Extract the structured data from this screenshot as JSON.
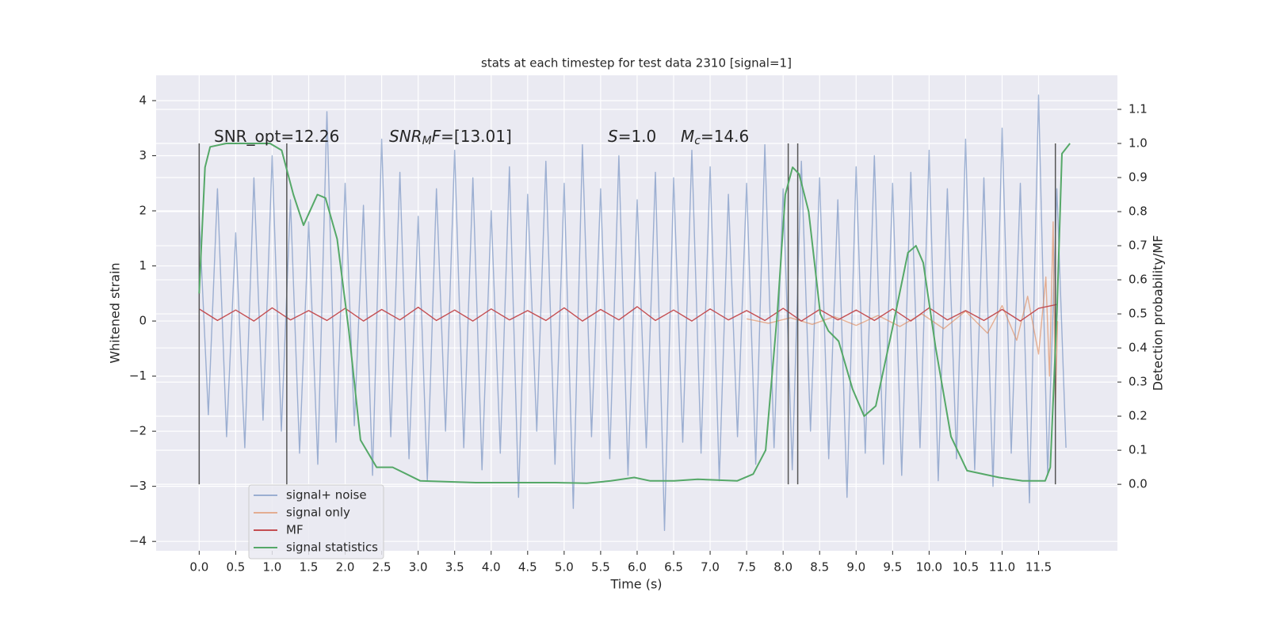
{
  "chart_data": {
    "type": "line",
    "title": "stats at each timestep for test data 2310 [signal=1]",
    "xlabel": "Time (s)",
    "ylabel": "Whitened strain",
    "y2label": "Detection probability/MF",
    "xlim": [
      -0.59,
      12.58
    ],
    "ylim": [
      -4.17,
      4.46
    ],
    "y2lim": [
      -0.195,
      1.2
    ],
    "xticks": [
      {
        "value": 0,
        "label": "0.0"
      },
      0.5,
      {
        "value": 1,
        "label": "1.0"
      },
      1.5,
      {
        "value": 2,
        "label": "2.0"
      },
      2.5,
      {
        "value": 3,
        "label": "3.0"
      },
      3.5,
      {
        "value": 4,
        "label": "4.0"
      },
      4.5,
      {
        "value": 5,
        "label": "5.0"
      },
      5.5,
      {
        "value": 6,
        "label": "6.0"
      },
      6.5,
      {
        "value": 7,
        "label": "7.0"
      },
      7.5,
      {
        "value": 8,
        "label": "8.0"
      },
      8.5,
      {
        "value": 9,
        "label": "9.0"
      },
      9.5,
      {
        "value": 10,
        "label": "10.0"
      },
      10.5,
      {
        "value": 11,
        "label": "11.0"
      },
      11.5
    ],
    "yticks": [
      {
        "value": -4,
        "label": "−4"
      },
      {
        "value": -3,
        "label": "−3"
      },
      {
        "value": -2,
        "label": "−2"
      },
      {
        "value": -1,
        "label": "−1"
      },
      0,
      1,
      2,
      3,
      4
    ],
    "y2ticks": [
      {
        "value": 0,
        "label": "0.0"
      },
      0.1,
      0.2,
      0.3,
      0.4,
      0.5,
      0.6,
      0.7,
      0.8,
      0.9,
      {
        "value": 1,
        "label": "1.0"
      },
      1.1
    ],
    "grid": true,
    "vlines": [
      0,
      1.2,
      8.07,
      8.2,
      11.73
    ],
    "vline_color": "#555555",
    "annotations": [
      [
        {
          "text": "SNR_opt=12.26",
          "style": "n"
        }
      ],
      [
        {
          "text": "SNR",
          "style": "i"
        },
        {
          "text": "M",
          "style": "sub"
        },
        {
          "text": "F",
          "style": "i"
        },
        {
          "text": "=[13.01]",
          "style": "n"
        }
      ],
      [
        {
          "text": "S",
          "style": "i"
        },
        {
          "text": "=1.0",
          "style": "n"
        }
      ],
      [
        {
          "text": "M",
          "style": "i"
        },
        {
          "text": "c",
          "style": "sub"
        },
        {
          "text": "=14.6",
          "style": "n"
        }
      ]
    ],
    "series": [
      {
        "name": "signal+ noise",
        "color": "#4c72b0",
        "opacity": 0.5,
        "x": [
          0,
          0.125,
          0.25,
          0.375,
          0.5,
          0.625,
          0.75,
          0.875,
          1,
          1.125,
          1.25,
          1.375,
          1.5,
          1.625,
          1.75,
          1.875,
          2,
          2.125,
          2.25,
          2.375,
          2.5,
          2.625,
          2.75,
          2.875,
          3,
          3.125,
          3.25,
          3.375,
          3.5,
          3.625,
          3.75,
          3.875,
          4,
          4.125,
          4.25,
          4.375,
          4.5,
          4.625,
          4.75,
          4.875,
          5,
          5.125,
          5.25,
          5.375,
          5.5,
          5.625,
          5.75,
          5.875,
          6,
          6.125,
          6.25,
          6.375,
          6.5,
          6.625,
          6.75,
          6.875,
          7,
          7.125,
          7.25,
          7.375,
          7.5,
          7.625,
          7.75,
          7.875,
          8,
          8.125,
          8.25,
          8.375,
          8.5,
          8.625,
          8.75,
          8.875,
          9,
          9.125,
          9.25,
          9.375,
          9.5,
          9.625,
          9.75,
          9.875,
          10,
          10.125,
          10.25,
          10.375,
          10.5,
          10.625,
          10.75,
          10.875,
          11,
          11.125,
          11.25,
          11.375,
          11.5,
          11.625,
          11.75,
          11.875
        ],
        "values": [
          1.9,
          -1.7,
          2.4,
          -2.1,
          1.6,
          -2.3,
          2.6,
          -1.8,
          3.0,
          -2.0,
          2.2,
          -2.4,
          1.8,
          -2.6,
          3.8,
          -2.2,
          2.5,
          -1.9,
          2.1,
          -2.8,
          3.3,
          -2.1,
          2.7,
          -2.5,
          1.9,
          -2.9,
          2.4,
          -2.0,
          3.1,
          -2.3,
          2.6,
          -2.7,
          2.0,
          -2.4,
          2.8,
          -3.2,
          2.3,
          -2.0,
          2.9,
          -2.6,
          2.5,
          -3.4,
          3.2,
          -2.1,
          2.4,
          -2.5,
          3.0,
          -2.8,
          2.2,
          -2.3,
          2.7,
          -3.8,
          2.6,
          -2.2,
          3.1,
          -2.4,
          2.8,
          -2.9,
          2.3,
          -2.1,
          2.5,
          -2.6,
          3.2,
          -2.3,
          2.4,
          -2.7,
          2.9,
          -2.0,
          2.6,
          -2.5,
          2.2,
          -3.2,
          2.8,
          -2.4,
          3.0,
          -2.6,
          2.5,
          -2.8,
          2.7,
          -2.3,
          3.1,
          -2.9,
          2.4,
          -2.5,
          3.3,
          -2.7,
          2.6,
          -3.0,
          3.5,
          -2.4,
          2.5,
          -3.3,
          4.1,
          -2.8,
          2.4,
          -2.3
        ]
      },
      {
        "name": "signal only",
        "color": "#dd8452",
        "opacity": 0.6,
        "x": [
          7.5,
          7.8,
          8.1,
          8.4,
          8.7,
          9.0,
          9.3,
          9.6,
          9.9,
          10.2,
          10.5,
          10.8,
          11.0,
          11.2,
          11.35,
          11.5,
          11.6,
          11.65,
          11.7,
          11.73,
          11.76
        ],
        "values": [
          0.04,
          -0.04,
          0.06,
          -0.06,
          0.08,
          -0.08,
          0.1,
          -0.1,
          0.13,
          -0.14,
          0.18,
          -0.22,
          0.28,
          -0.35,
          0.45,
          -0.6,
          0.8,
          -1.0,
          1.8,
          -1.6,
          0.0
        ]
      },
      {
        "name": "MF",
        "color": "#c44e52",
        "opacity": 1,
        "x": [
          0,
          0.25,
          0.5,
          0.75,
          1,
          1.25,
          1.5,
          1.75,
          2,
          2.25,
          2.5,
          2.75,
          3,
          3.25,
          3.5,
          3.75,
          4,
          4.25,
          4.5,
          4.75,
          5,
          5.25,
          5.5,
          5.75,
          6,
          6.25,
          6.5,
          6.75,
          7,
          7.25,
          7.5,
          7.75,
          8,
          8.25,
          8.5,
          8.75,
          9,
          9.25,
          9.5,
          9.75,
          10,
          10.25,
          10.5,
          10.75,
          11,
          11.25,
          11.5,
          11.75
        ],
        "values": [
          0.22,
          0.01,
          0.2,
          0.0,
          0.24,
          0.02,
          0.19,
          0.01,
          0.23,
          0.0,
          0.21,
          0.02,
          0.25,
          0.01,
          0.2,
          0.0,
          0.22,
          0.02,
          0.19,
          0.01,
          0.24,
          0.0,
          0.21,
          0.02,
          0.26,
          0.01,
          0.2,
          0.0,
          0.22,
          0.02,
          0.19,
          0.01,
          0.23,
          0.0,
          0.21,
          0.02,
          0.2,
          0.01,
          0.22,
          0.0,
          0.24,
          0.02,
          0.19,
          0.01,
          0.21,
          0.0,
          0.23,
          0.3
        ]
      },
      {
        "name": "signal statistics",
        "color": "#55a868",
        "opacity": 1,
        "axis": "y2",
        "x": [
          0,
          0.08,
          0.15,
          0.37,
          0.97,
          1.13,
          1.29,
          1.43,
          1.62,
          1.73,
          1.89,
          2.05,
          2.21,
          2.43,
          2.65,
          3.03,
          3.79,
          4.88,
          5.31,
          5.64,
          5.96,
          6.18,
          6.51,
          6.83,
          7.37,
          7.59,
          7.76,
          7.92,
          8.03,
          8.13,
          8.22,
          8.35,
          8.51,
          8.62,
          8.76,
          8.95,
          9.11,
          9.27,
          9.49,
          9.71,
          9.82,
          9.92,
          10.09,
          10.3,
          10.52,
          10.96,
          11.28,
          11.59,
          11.66,
          11.75,
          11.82,
          11.93
        ],
        "values": [
          0.56,
          0.93,
          0.99,
          1.0,
          1.0,
          0.98,
          0.85,
          0.76,
          0.85,
          0.84,
          0.72,
          0.45,
          0.13,
          0.05,
          0.05,
          0.01,
          0.005,
          0.005,
          0.003,
          0.01,
          0.02,
          0.01,
          0.01,
          0.015,
          0.01,
          0.03,
          0.1,
          0.5,
          0.85,
          0.93,
          0.91,
          0.8,
          0.5,
          0.45,
          0.42,
          0.28,
          0.2,
          0.23,
          0.45,
          0.68,
          0.7,
          0.65,
          0.4,
          0.14,
          0.04,
          0.02,
          0.01,
          0.01,
          0.05,
          0.5,
          0.97,
          1.0
        ]
      }
    ]
  }
}
